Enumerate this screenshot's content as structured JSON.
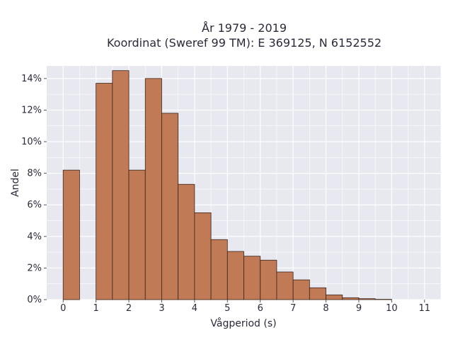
{
  "chart_data": {
    "type": "bar",
    "title": "År 1979 - 2019",
    "subtitle": "Koordinat (Sweref 99 TM): E 369125, N 6152552",
    "xlabel": "Vågperiod (s)",
    "ylabel": "Andel",
    "bin_width": 0.5,
    "bin_edges_start": [
      0.0,
      1.0,
      1.5,
      2.0,
      2.5,
      3.0,
      3.5,
      4.0,
      4.5,
      5.0,
      5.5,
      6.0,
      6.5,
      7.0,
      7.5,
      8.0,
      8.5,
      9.0,
      9.5
    ],
    "values": [
      8.2,
      13.7,
      14.5,
      8.2,
      14.0,
      11.8,
      7.3,
      5.5,
      3.8,
      3.05,
      2.75,
      2.5,
      1.75,
      1.25,
      0.75,
      0.3,
      0.12,
      0.06,
      0.02
    ],
    "xlim": [
      -0.5,
      11.5
    ],
    "ylim": [
      0,
      14.8
    ],
    "x_ticks": [
      "0",
      "1",
      "2",
      "3",
      "4",
      "5",
      "6",
      "7",
      "8",
      "9",
      "10",
      "11"
    ],
    "y_ticks": [
      "0%",
      "2%",
      "4%",
      "6%",
      "8%",
      "10%",
      "12%",
      "14%"
    ],
    "bar_color": "#c07a55",
    "bar_edge_color": "#3a2418",
    "plot_bg": "#e8e8f1",
    "grid": true
  }
}
